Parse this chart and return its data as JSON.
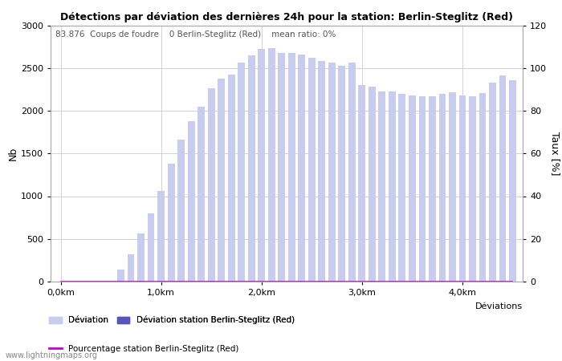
{
  "title": "Détections par déviation des dernières 24h pour la station: Berlin-Steglitz (Red)",
  "ylabel_left": "Nb",
  "ylabel_right": "Taux [%]",
  "annotation": "83.876  Coups de foudre    0 Berlin-Steglitz (Red)    mean ratio: 0%",
  "ylim_left": [
    0,
    3000
  ],
  "ylim_right": [
    0,
    120
  ],
  "yticks_left": [
    0,
    500,
    1000,
    1500,
    2000,
    2500,
    3000
  ],
  "yticks_right": [
    0,
    20,
    40,
    60,
    80,
    100,
    120
  ],
  "bar_color_light": "#c8ccee",
  "bar_color_dark": "#5555bb",
  "line_color": "#cc00cc",
  "watermark": "www.lightningmaps.org",
  "legend_deviation": "Déviation",
  "legend_station": "Déviation station Berlin-Steglitz (Red)",
  "legend_pct": "Pourcentage station Berlin-Steglitz (Red)",
  "xlabel_right": "Déviations",
  "xtick_labels": [
    "0,0km",
    "1,0km",
    "2,0km",
    "3,0km",
    "4,0km"
  ],
  "xtick_positions": [
    0,
    10,
    20,
    30,
    40
  ],
  "deviations": [
    0,
    1,
    2,
    3,
    4,
    5,
    6,
    7,
    8,
    9,
    10,
    11,
    12,
    13,
    14,
    15,
    16,
    17,
    18,
    19,
    20,
    21,
    22,
    23,
    24,
    25,
    26,
    27,
    28,
    29,
    30,
    31,
    32,
    33,
    34,
    35,
    36,
    37,
    38,
    39,
    40,
    41,
    42,
    43,
    44,
    45
  ],
  "values_total": [
    0,
    0,
    0,
    0,
    0,
    0,
    140,
    320,
    560,
    800,
    1060,
    1380,
    1660,
    1880,
    2050,
    2260,
    2380,
    2420,
    2560,
    2650,
    2720,
    2730,
    2680,
    2680,
    2660,
    2620,
    2580,
    2560,
    2530,
    2560,
    2300,
    2280,
    2230,
    2230,
    2200,
    2180,
    2170,
    2170,
    2200,
    2220,
    2180,
    2170,
    2210,
    2330,
    2410,
    2360
  ],
  "values_station": [
    0,
    0,
    0,
    0,
    0,
    0,
    0,
    0,
    0,
    0,
    0,
    0,
    0,
    0,
    0,
    0,
    0,
    0,
    0,
    0,
    0,
    0,
    0,
    0,
    0,
    0,
    0,
    0,
    0,
    0,
    0,
    0,
    0,
    0,
    0,
    0,
    0,
    0,
    0,
    0,
    0,
    0,
    0,
    0,
    0,
    0
  ],
  "pct_values": [
    0,
    0,
    0,
    0,
    0,
    0,
    0,
    0,
    0,
    0,
    0,
    0,
    0,
    0,
    0,
    0,
    0,
    0,
    0,
    0,
    0,
    0,
    0,
    0,
    0,
    0,
    0,
    0,
    0,
    0,
    0,
    0,
    0,
    0,
    0,
    0,
    0,
    0,
    0,
    0,
    0,
    0,
    0,
    0,
    0,
    0
  ]
}
